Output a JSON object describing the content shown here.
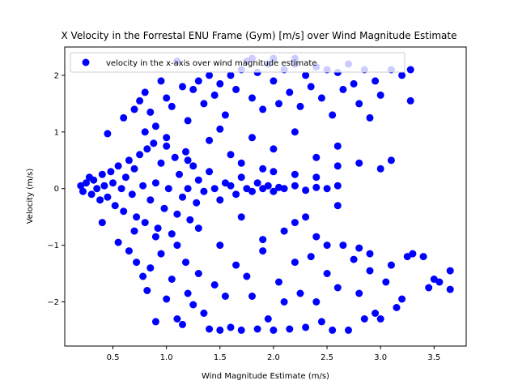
{
  "chart_data": {
    "type": "scatter",
    "title": "X Velocity in the Forrestal ENU Frame (Gym) [m/s] over Wind Magnitude Estimate",
    "xlabel": "Wind Magnitude Estimate (m/s)",
    "ylabel": "Velocity (m/s)",
    "xlim": [
      0.05,
      3.8
    ],
    "ylim": [
      -2.78,
      2.5
    ],
    "xticks": [
      0.5,
      1.0,
      1.5,
      2.0,
      2.5,
      3.0,
      3.5
    ],
    "xtick_labels": [
      "0.5",
      "1.0",
      "1.5",
      "2.0",
      "2.5",
      "3.0",
      "3.5"
    ],
    "yticks": [
      -2,
      -1,
      0,
      1,
      2
    ],
    "ytick_labels": [
      "−2",
      "−1",
      "0",
      "1",
      "2"
    ],
    "legend": {
      "placement": "upper-left"
    },
    "grid": false,
    "series": [
      {
        "name": "velocity in the x-axis over wind magnitude estimate",
        "color": "#0000ff",
        "marker": "circle",
        "points": [
          [
            0.2,
            0.05
          ],
          [
            0.22,
            -0.05
          ],
          [
            0.25,
            0.1
          ],
          [
            0.28,
            0.2
          ],
          [
            0.3,
            -0.1
          ],
          [
            0.32,
            0.15
          ],
          [
            0.35,
            0.0
          ],
          [
            0.38,
            -0.2
          ],
          [
            0.4,
            0.25
          ],
          [
            0.42,
            0.05
          ],
          [
            0.45,
            -0.15
          ],
          [
            0.48,
            0.3
          ],
          [
            0.5,
            0.1
          ],
          [
            0.52,
            -0.3
          ],
          [
            0.55,
            0.4
          ],
          [
            0.58,
            0.0
          ],
          [
            0.6,
            -0.4
          ],
          [
            0.62,
            0.2
          ],
          [
            0.65,
            0.5
          ],
          [
            0.68,
            -0.1
          ],
          [
            0.7,
            0.35
          ],
          [
            0.72,
            -0.5
          ],
          [
            0.75,
            0.6
          ],
          [
            0.78,
            0.05
          ],
          [
            0.8,
            -0.6
          ],
          [
            0.82,
            0.7
          ],
          [
            0.85,
            -0.2
          ],
          [
            0.88,
            0.8
          ],
          [
            0.9,
            0.1
          ],
          [
            0.92,
            -0.7
          ],
          [
            0.95,
            0.45
          ],
          [
            0.98,
            -0.35
          ],
          [
            1.0,
            0.9
          ],
          [
            1.02,
            0.0
          ],
          [
            1.05,
            -0.8
          ],
          [
            1.08,
            0.55
          ],
          [
            1.1,
            -0.45
          ],
          [
            1.12,
            0.25
          ],
          [
            1.15,
            -0.15
          ],
          [
            1.18,
            0.65
          ],
          [
            1.2,
            0.0
          ],
          [
            1.22,
            -0.55
          ],
          [
            1.25,
            0.4
          ],
          [
            1.28,
            -0.25
          ],
          [
            1.3,
            0.15
          ],
          [
            1.35,
            -0.05
          ],
          [
            1.4,
            0.3
          ],
          [
            1.45,
            0.0
          ],
          [
            1.5,
            -0.2
          ],
          [
            1.55,
            0.1
          ],
          [
            1.6,
            0.05
          ],
          [
            1.65,
            -0.1
          ],
          [
            1.7,
            0.2
          ],
          [
            1.75,
            0.0
          ],
          [
            1.8,
            -0.05
          ],
          [
            1.85,
            0.1
          ],
          [
            1.9,
            0.0
          ],
          [
            1.95,
            0.05
          ],
          [
            2.0,
            -0.05
          ],
          [
            2.05,
            0.02
          ],
          [
            2.1,
            0.0
          ],
          [
            2.2,
            0.05
          ],
          [
            2.3,
            -0.03
          ],
          [
            2.4,
            0.02
          ],
          [
            2.5,
            0.0
          ],
          [
            2.6,
            0.05
          ],
          [
            0.45,
            0.97
          ],
          [
            0.6,
            1.25
          ],
          [
            0.7,
            1.4
          ],
          [
            0.75,
            1.55
          ],
          [
            0.8,
            1.7
          ],
          [
            0.85,
            1.35
          ],
          [
            0.9,
            1.1
          ],
          [
            0.95,
            1.9
          ],
          [
            1.0,
            1.6
          ],
          [
            1.05,
            1.45
          ],
          [
            1.1,
            2.25
          ],
          [
            1.15,
            1.8
          ],
          [
            1.2,
            1.2
          ],
          [
            1.25,
            1.75
          ],
          [
            1.3,
            1.9
          ],
          [
            1.35,
            1.5
          ],
          [
            1.4,
            2.0
          ],
          [
            1.45,
            1.65
          ],
          [
            1.5,
            1.85
          ],
          [
            1.55,
            1.3
          ],
          [
            1.6,
            2.0
          ],
          [
            1.65,
            1.75
          ],
          [
            1.7,
            2.1
          ],
          [
            1.75,
            2.25
          ],
          [
            1.8,
            1.6
          ],
          [
            1.85,
            2.05
          ],
          [
            1.9,
            1.4
          ],
          [
            1.95,
            2.2
          ],
          [
            2.0,
            1.9
          ],
          [
            2.05,
            1.5
          ],
          [
            2.1,
            2.1
          ],
          [
            2.15,
            1.7
          ],
          [
            2.2,
            2.2
          ],
          [
            2.25,
            1.45
          ],
          [
            2.3,
            2.0
          ],
          [
            2.35,
            1.8
          ],
          [
            2.4,
            2.15
          ],
          [
            2.45,
            1.6
          ],
          [
            2.5,
            2.1
          ],
          [
            2.55,
            1.3
          ],
          [
            2.6,
            2.05
          ],
          [
            2.65,
            1.75
          ],
          [
            2.7,
            2.2
          ],
          [
            2.75,
            1.85
          ],
          [
            2.8,
            1.5
          ],
          [
            2.85,
            2.1
          ],
          [
            2.9,
            1.25
          ],
          [
            2.95,
            1.9
          ],
          [
            3.0,
            1.65
          ],
          [
            3.1,
            2.1
          ],
          [
            3.2,
            2.0
          ],
          [
            3.28,
            2.1
          ],
          [
            3.28,
            1.55
          ],
          [
            1.8,
            2.3
          ],
          [
            2.0,
            2.3
          ],
          [
            2.2,
            2.3
          ],
          [
            0.8,
            1.0
          ],
          [
            1.0,
            0.75
          ],
          [
            1.2,
            0.5
          ],
          [
            1.4,
            0.85
          ],
          [
            1.6,
            0.6
          ],
          [
            1.8,
            0.9
          ],
          [
            2.0,
            0.7
          ],
          [
            2.2,
            1.0
          ],
          [
            2.4,
            0.55
          ],
          [
            2.6,
            0.75
          ],
          [
            2.8,
            0.45
          ],
          [
            3.0,
            0.35
          ],
          [
            3.1,
            0.5
          ],
          [
            2.0,
            0.3
          ],
          [
            2.2,
            0.25
          ],
          [
            2.4,
            0.2
          ],
          [
            2.6,
            0.4
          ],
          [
            1.5,
            1.05
          ],
          [
            1.7,
            0.45
          ],
          [
            1.9,
            0.35
          ],
          [
            0.4,
            -0.6
          ],
          [
            0.55,
            -0.95
          ],
          [
            0.65,
            -1.1
          ],
          [
            0.72,
            -1.3
          ],
          [
            0.78,
            -1.55
          ],
          [
            0.82,
            -1.8
          ],
          [
            0.85,
            -1.4
          ],
          [
            0.9,
            -2.35
          ],
          [
            0.95,
            -1.15
          ],
          [
            1.0,
            -1.95
          ],
          [
            1.05,
            -1.6
          ],
          [
            1.1,
            -2.3
          ],
          [
            1.15,
            -2.4
          ],
          [
            1.18,
            -1.3
          ],
          [
            1.2,
            -1.85
          ],
          [
            1.25,
            -2.05
          ],
          [
            1.3,
            -1.5
          ],
          [
            1.35,
            -2.2
          ],
          [
            1.4,
            -2.48
          ],
          [
            1.45,
            -1.7
          ],
          [
            1.5,
            -2.5
          ],
          [
            1.55,
            -1.9
          ],
          [
            1.6,
            -2.45
          ],
          [
            1.65,
            -1.35
          ],
          [
            1.7,
            -2.5
          ],
          [
            1.75,
            -1.55
          ],
          [
            1.8,
            -1.9
          ],
          [
            1.85,
            -2.48
          ],
          [
            1.9,
            -1.1
          ],
          [
            1.95,
            -2.3
          ],
          [
            2.0,
            -2.5
          ],
          [
            2.05,
            -1.65
          ],
          [
            2.1,
            -2.0
          ],
          [
            2.15,
            -2.48
          ],
          [
            2.2,
            -1.3
          ],
          [
            2.25,
            -1.85
          ],
          [
            2.3,
            -2.45
          ],
          [
            2.35,
            -1.2
          ],
          [
            2.4,
            -2.0
          ],
          [
            2.45,
            -2.35
          ],
          [
            2.5,
            -1.5
          ],
          [
            2.55,
            -2.5
          ],
          [
            2.6,
            -1.75
          ],
          [
            2.65,
            -1.0
          ],
          [
            2.7,
            -2.5
          ],
          [
            2.75,
            -1.25
          ],
          [
            2.8,
            -1.85
          ],
          [
            2.85,
            -2.3
          ],
          [
            2.9,
            -1.45
          ],
          [
            2.95,
            -2.2
          ],
          [
            3.0,
            -2.3
          ],
          [
            3.05,
            -1.65
          ],
          [
            3.1,
            -1.35
          ],
          [
            3.15,
            -2.1
          ],
          [
            3.2,
            -1.95
          ],
          [
            3.25,
            -1.2
          ],
          [
            3.3,
            -1.15
          ],
          [
            3.4,
            -1.2
          ],
          [
            3.45,
            -1.75
          ],
          [
            3.5,
            -1.6
          ],
          [
            3.55,
            -1.65
          ],
          [
            3.65,
            -1.45
          ],
          [
            3.65,
            -1.78
          ],
          [
            2.9,
            -1.15
          ],
          [
            2.8,
            -1.05
          ],
          [
            2.5,
            -1.0
          ],
          [
            2.3,
            -0.5
          ],
          [
            2.1,
            -0.75
          ],
          [
            1.9,
            -0.9
          ],
          [
            1.7,
            -0.5
          ],
          [
            1.5,
            -1.0
          ],
          [
            1.3,
            -0.7
          ],
          [
            1.1,
            -1.0
          ],
          [
            0.9,
            -0.85
          ],
          [
            0.7,
            -0.75
          ],
          [
            2.6,
            -0.3
          ],
          [
            2.4,
            -0.85
          ],
          [
            2.2,
            -0.6
          ]
        ]
      }
    ]
  }
}
